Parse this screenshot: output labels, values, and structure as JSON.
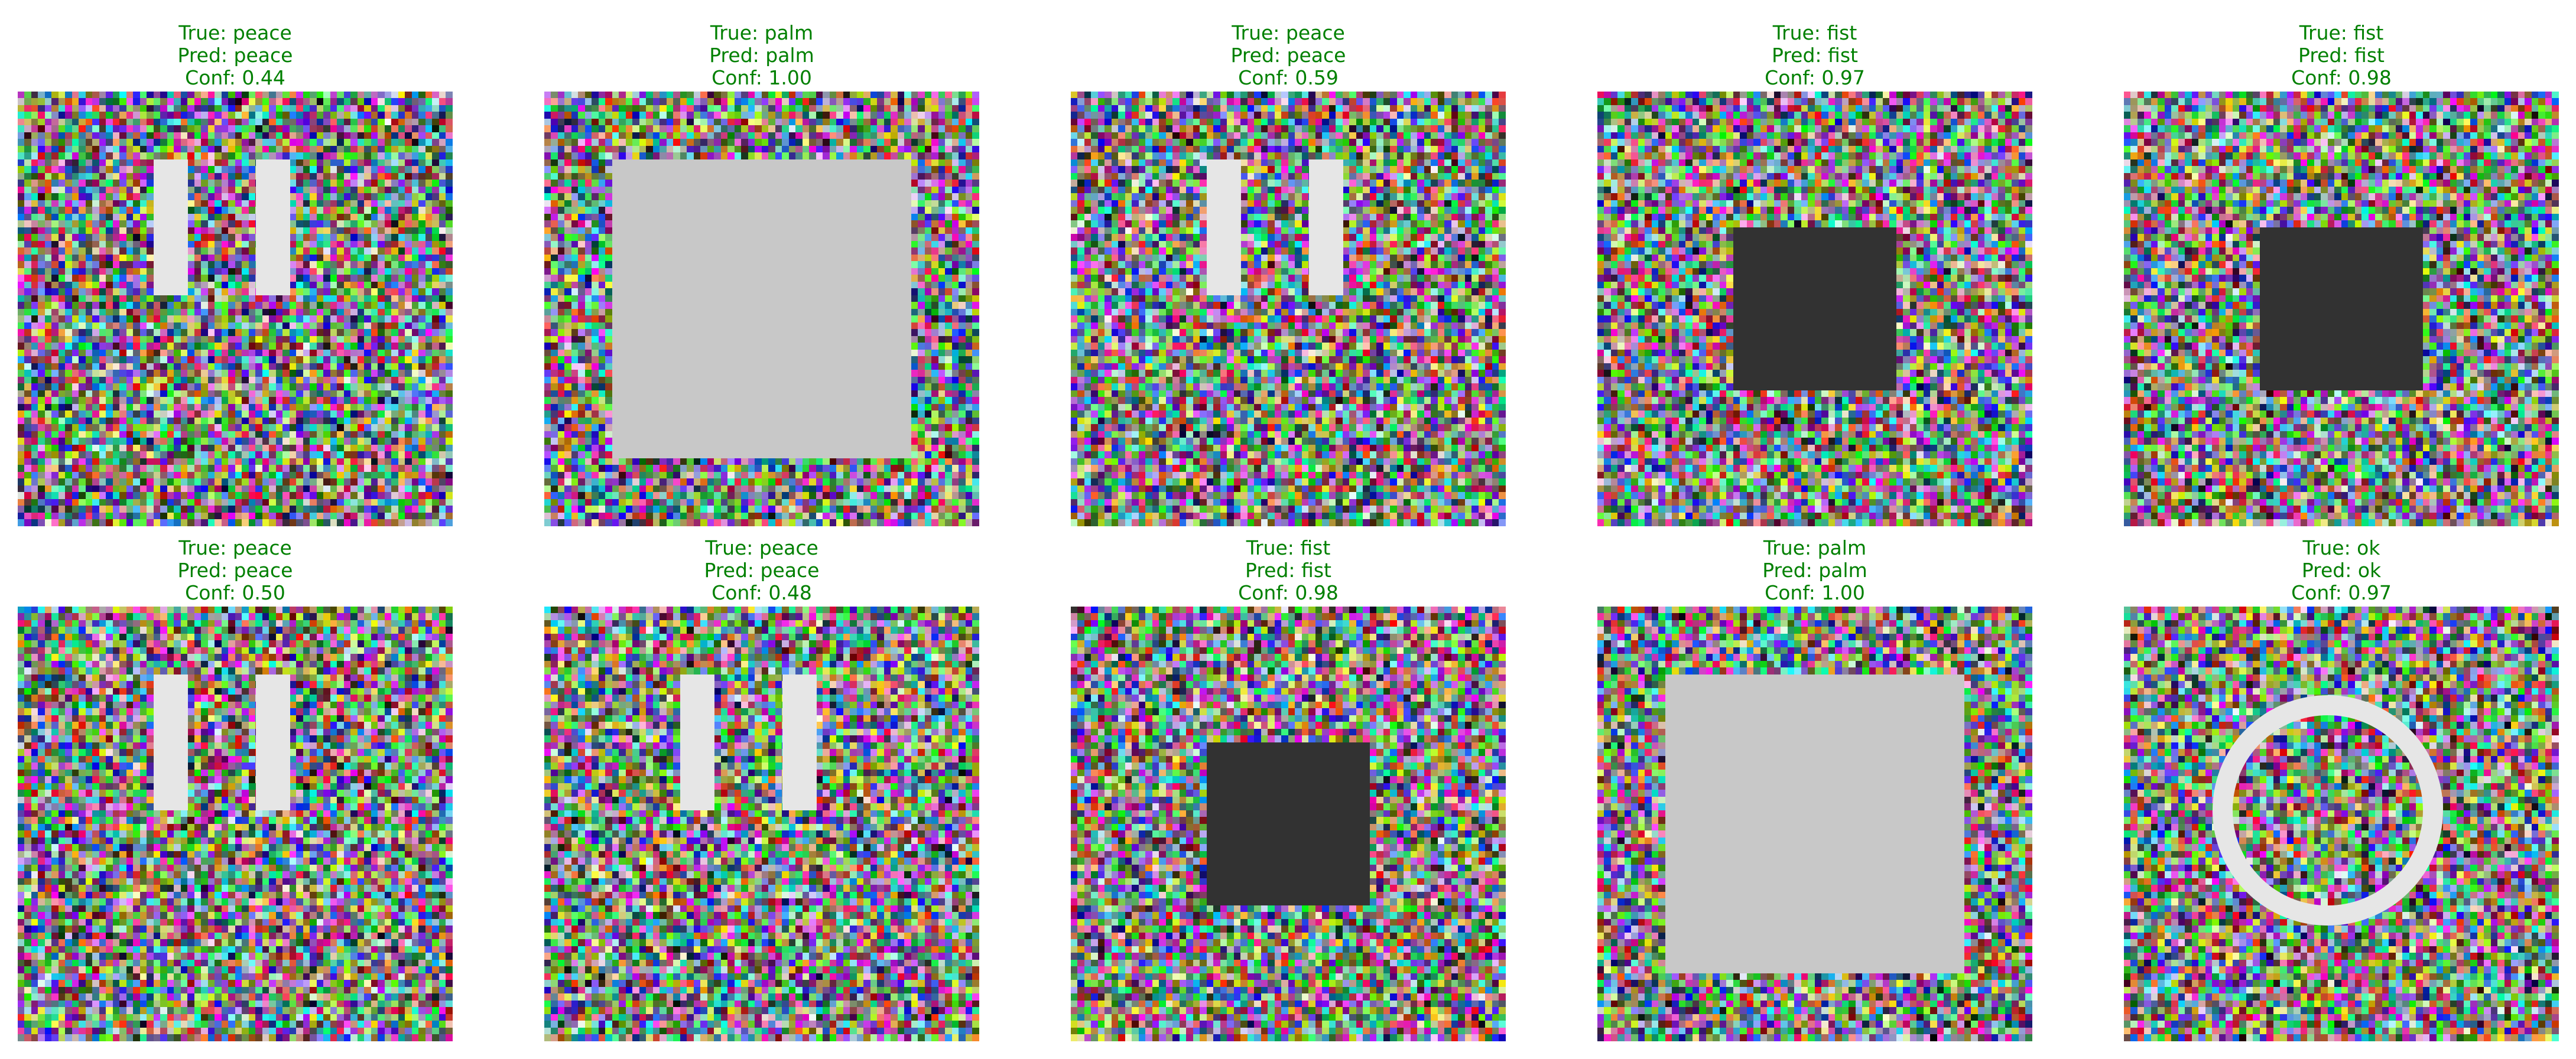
{
  "colors": {
    "caption_correct": "#008000",
    "finger_bar": "#e6e6e6",
    "palm_square": "#c8c8c8",
    "fist_square": "#323232",
    "ok_ring": "#e6e6e6",
    "background": "#ffffff"
  },
  "samples": [
    {
      "true_line": "True: peace",
      "pred_line": "Pred: peace",
      "conf_line": "Conf: 0.44",
      "gesture": "peace",
      "correct": true
    },
    {
      "true_line": "True: palm",
      "pred_line": "Pred: palm",
      "conf_line": "Conf: 1.00",
      "gesture": "palm",
      "correct": true
    },
    {
      "true_line": "True: peace",
      "pred_line": "Pred: peace",
      "conf_line": "Conf: 0.59",
      "gesture": "peace",
      "correct": true
    },
    {
      "true_line": "True: fist",
      "pred_line": "Pred: fist",
      "conf_line": "Conf: 0.97",
      "gesture": "fist",
      "correct": true
    },
    {
      "true_line": "True: fist",
      "pred_line": "Pred: fist",
      "conf_line": "Conf: 0.98",
      "gesture": "fist",
      "correct": true
    },
    {
      "true_line": "True: peace",
      "pred_line": "Pred: peace",
      "conf_line": "Conf: 0.50",
      "gesture": "peace",
      "correct": true
    },
    {
      "true_line": "True: peace",
      "pred_line": "Pred: peace",
      "conf_line": "Conf: 0.48",
      "gesture": "peace",
      "correct": true
    },
    {
      "true_line": "True: fist",
      "pred_line": "Pred: fist",
      "conf_line": "Conf: 0.98",
      "gesture": "fist",
      "correct": true
    },
    {
      "true_line": "True: palm",
      "pred_line": "Pred: palm",
      "conf_line": "Conf: 1.00",
      "gesture": "palm",
      "correct": true
    },
    {
      "true_line": "True: ok",
      "pred_line": "Pred: ok",
      "conf_line": "Conf: 0.97",
      "gesture": "ok",
      "correct": true
    }
  ]
}
